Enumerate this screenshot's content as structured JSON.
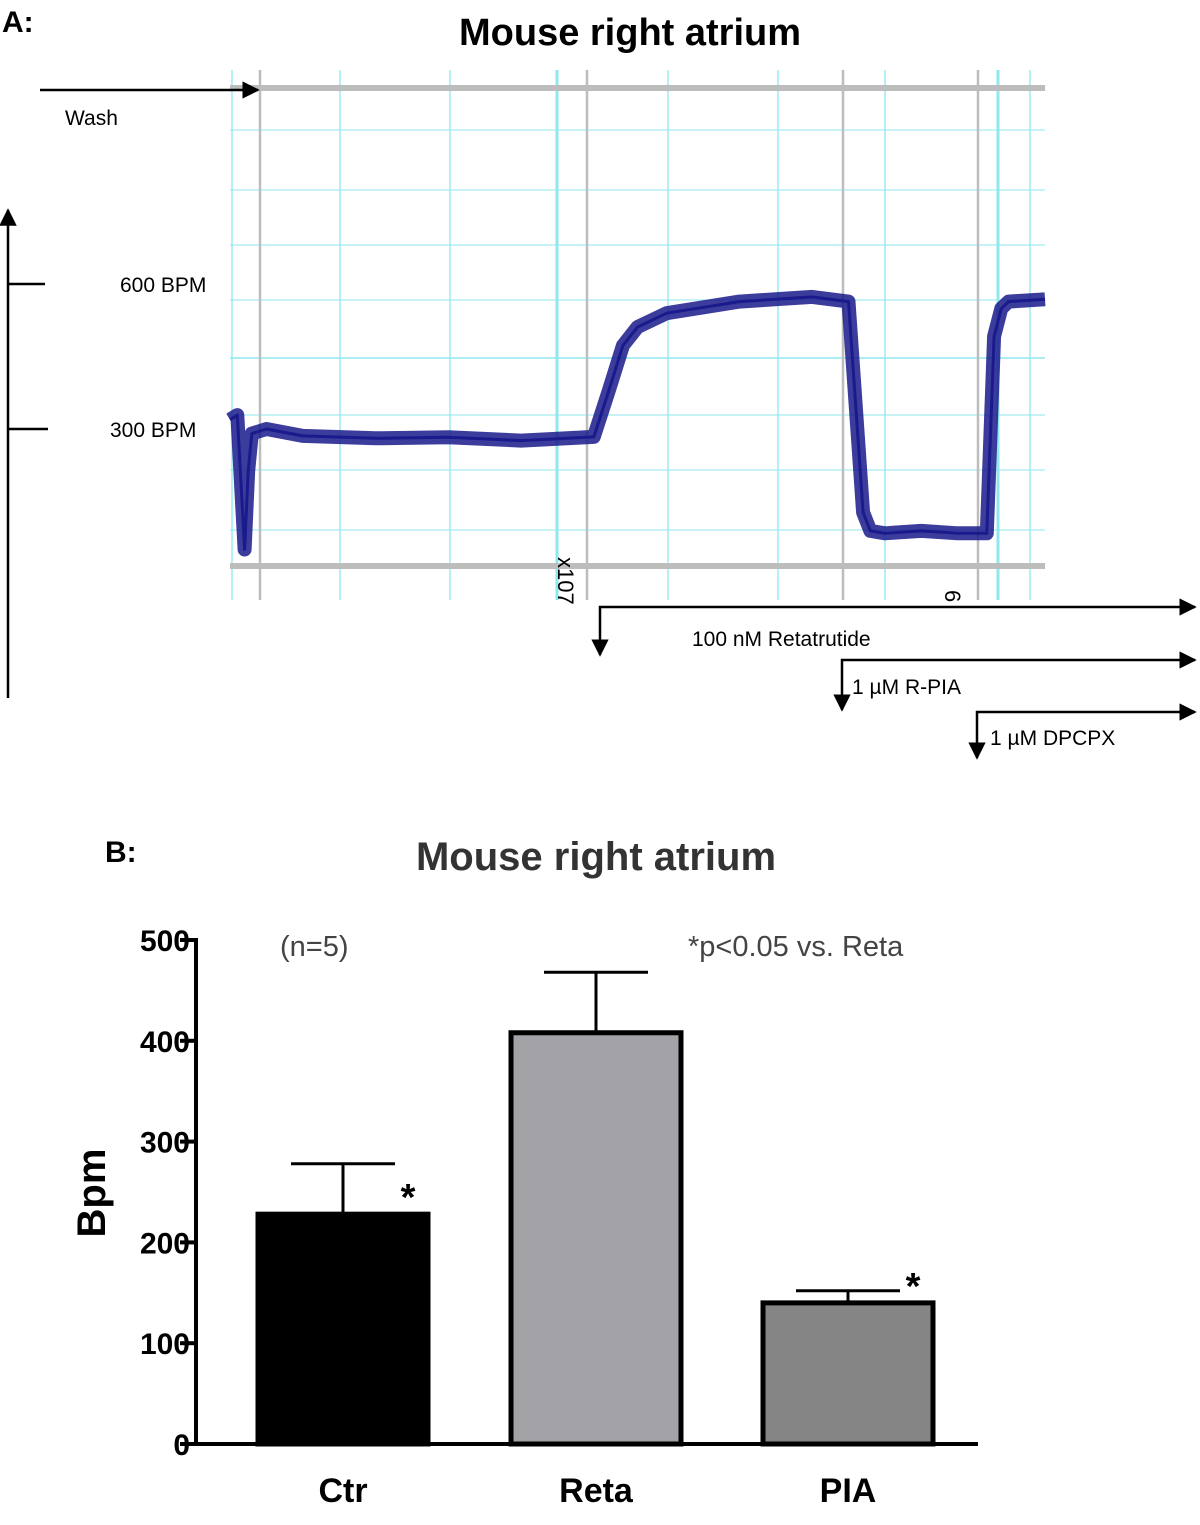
{
  "panel_a": {
    "label": "A:",
    "title": "Mouse right atrium",
    "markers": {
      "wash": "Wash",
      "bpm600": "600 BPM",
      "bpm300": "300 BPM",
      "tick_107": "x107",
      "tick_6": "6"
    },
    "drugs": {
      "reta": "100 nM Retatrutide",
      "rpia": "1 µM R-PIA",
      "dpcpx": "1 µM  DPCPX"
    },
    "colors": {
      "trace": "#1a1a8c",
      "grid": "#8fe7ef",
      "grid_major": "#bdbdbd"
    }
  },
  "panel_b": {
    "label": "B:",
    "n_label": "(n=5)",
    "p_label": "*p<0.05 vs. Reta",
    "colors": {
      "Ctr": "#000000",
      "Reta": "#a3a3a7",
      "PIA": "#858585"
    }
  },
  "chart_data": [
    {
      "type": "line",
      "title": "Mouse right atrium",
      "xlabel": "",
      "ylabel": "",
      "ylim": [
        0,
        700
      ],
      "y_ticks": [
        300,
        600
      ],
      "events": [
        "Wash",
        "100 nM Retatrutide",
        "1 µM R-PIA",
        "1 µM  DPCPX"
      ],
      "series": [
        {
          "x": [
            0,
            1,
            2,
            2.5,
            3,
            5,
            10,
            20,
            30,
            40,
            50,
            52,
            54,
            56,
            60,
            70,
            80,
            85,
            87,
            88,
            90,
            95,
            100,
            104,
            105,
            106,
            107,
            112
          ],
          "y": [
            320,
            330,
            40,
            210,
            290,
            300,
            285,
            280,
            282,
            275,
            283,
            380,
            480,
            520,
            550,
            575,
            585,
            575,
            120,
            80,
            75,
            80,
            75,
            75,
            500,
            560,
            575,
            580
          ]
        }
      ]
    },
    {
      "type": "bar",
      "title": "Mouse right atrium",
      "xlabel": "",
      "ylabel": "Bpm",
      "ylim": [
        0,
        500
      ],
      "yticks": [
        0,
        100,
        200,
        300,
        400,
        500
      ],
      "categories": [
        "Ctr",
        "Reta",
        "PIA"
      ],
      "values": [
        228,
        408,
        140
      ],
      "errors": [
        50,
        60,
        12
      ],
      "significance": [
        "*",
        "",
        "*"
      ]
    }
  ]
}
